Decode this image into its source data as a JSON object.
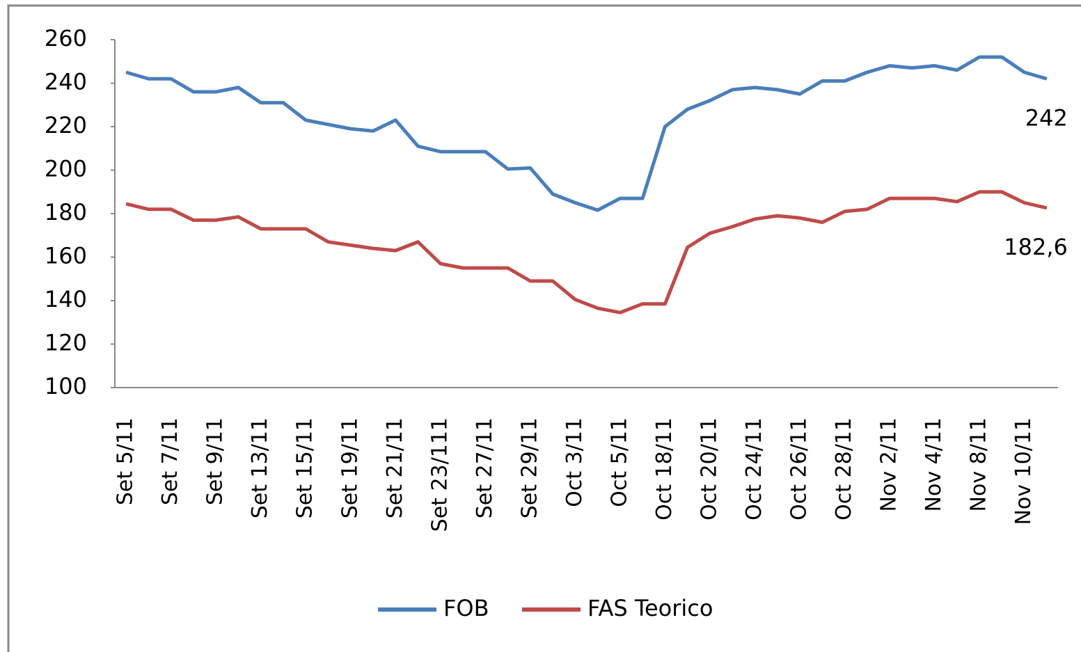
{
  "chart_data": {
    "type": "line",
    "categories": [
      "Set 5/11",
      null,
      "Set 7/11",
      null,
      "Set 9/11",
      null,
      "Set 13/11",
      null,
      "Set 15/11",
      null,
      "Set 19/11",
      null,
      "Set 21/11",
      null,
      "Set 23/111",
      null,
      "Set 27/11",
      null,
      "Set 29/11",
      null,
      "Oct 3/11",
      null,
      "Oct 5/11",
      null,
      "Oct 18/11",
      null,
      "Oct 20/11",
      null,
      "Oct 24/11",
      null,
      "Oct 26/11",
      null,
      "Oct 28/11",
      null,
      "Nov 2/11",
      null,
      "Nov 4/11",
      null,
      "Nov 8/11",
      null,
      "Nov 10/11",
      null
    ],
    "series": [
      {
        "name": "FOB",
        "color": "#4a7ebb",
        "values": [
          245,
          242,
          242,
          236,
          236,
          238,
          231,
          231,
          223,
          221,
          219,
          218,
          223,
          211,
          208.5,
          208.5,
          208.5,
          200.5,
          201,
          189,
          185,
          181.6,
          187,
          187,
          220,
          228,
          232,
          237,
          238,
          237,
          235,
          241,
          241,
          245,
          248,
          247,
          248,
          246,
          252,
          252,
          245,
          242
        ],
        "value_labels": [
          null,
          null,
          null,
          null,
          null,
          null,
          null,
          null,
          null,
          null,
          null,
          null,
          null,
          null,
          null,
          null,
          null,
          null,
          null,
          null,
          null,
          null,
          null,
          null,
          null,
          null,
          null,
          null,
          null,
          null,
          null,
          null,
          null,
          null,
          null,
          null,
          null,
          null,
          null,
          null,
          null,
          "242"
        ]
      },
      {
        "name": "FAS Teorico",
        "color": "#be4b48",
        "values": [
          184.5,
          182,
          182,
          177,
          177,
          178.5,
          173,
          173,
          173,
          167,
          165.5,
          164,
          163,
          167,
          157,
          155,
          155,
          155,
          149,
          149,
          140.5,
          136.5,
          134.5,
          138.5,
          138.5,
          164.5,
          171,
          174,
          177.5,
          179,
          178,
          176,
          181,
          182,
          187,
          187,
          187,
          185.5,
          190,
          190,
          185,
          182.6
        ],
        "value_labels": [
          null,
          null,
          null,
          null,
          null,
          null,
          null,
          null,
          null,
          null,
          null,
          null,
          null,
          null,
          null,
          null,
          null,
          null,
          null,
          null,
          null,
          null,
          null,
          null,
          null,
          null,
          null,
          null,
          null,
          null,
          null,
          null,
          null,
          null,
          null,
          null,
          null,
          null,
          null,
          null,
          null,
          "182,6"
        ]
      }
    ],
    "ylim": [
      100,
      260
    ],
    "yticks": [
      100,
      120,
      140,
      160,
      180,
      200,
      220,
      240,
      260
    ],
    "grid": false,
    "legend": "bottom"
  }
}
